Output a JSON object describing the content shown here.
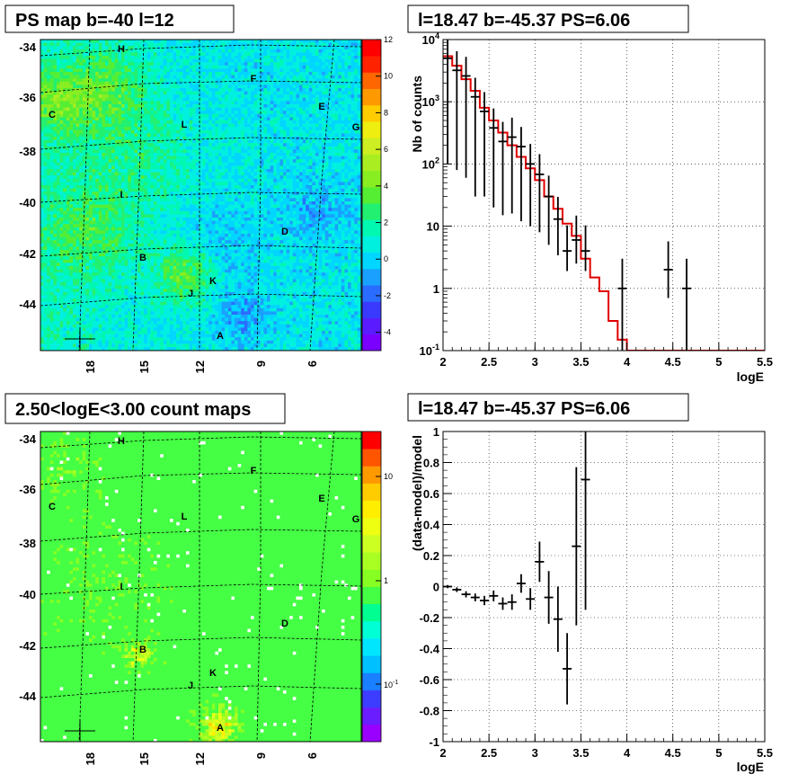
{
  "chart_data": [
    {
      "type": "heatmap",
      "title": "PS map b=-40 l=12",
      "xlabel": "",
      "ylabel": "",
      "x_ticks": [
        "18",
        "15",
        "12",
        "9",
        "6"
      ],
      "y_ticks": [
        "-34",
        "-36",
        "-38",
        "-40",
        "-42",
        "-44"
      ],
      "colorbar": {
        "scale": "linear",
        "range": [
          -5,
          12
        ],
        "tick_labels": [
          "12",
          "10",
          "8",
          "6",
          "4",
          "2",
          "0",
          "-2",
          "-4"
        ],
        "tick_values": [
          12,
          10,
          8,
          6,
          4,
          2,
          0,
          -2,
          -4
        ]
      },
      "sources": [
        {
          "name": "H"
        },
        {
          "name": "F"
        },
        {
          "name": "C"
        },
        {
          "name": "E"
        },
        {
          "name": "L"
        },
        {
          "name": "G"
        },
        {
          "name": "I"
        },
        {
          "name": "D"
        },
        {
          "name": "B"
        },
        {
          "name": "K"
        },
        {
          "name": "J"
        },
        {
          "name": "A"
        }
      ]
    },
    {
      "type": "line",
      "title": "l=18.47 b=-45.37 PS=6.06",
      "xlabel": "logE",
      "ylabel": "Nb of counts",
      "xlim": [
        2,
        5.5
      ],
      "ylim": [
        0.1,
        10000
      ],
      "yscale": "log",
      "grid": true,
      "x_ticks": [
        "2",
        "2.5",
        "3",
        "3.5",
        "4",
        "4.5",
        "5",
        "5.5"
      ],
      "y_ticks": [
        "10^-1",
        "1",
        "10",
        "10^2",
        "10^3",
        "10^4"
      ],
      "data": {
        "x": [
          2.05,
          2.15,
          2.25,
          2.35,
          2.45,
          2.55,
          2.65,
          2.75,
          2.85,
          2.95,
          3.05,
          3.15,
          3.25,
          3.35,
          3.45,
          3.55,
          3.95,
          4.45,
          4.65
        ],
        "y": [
          5000,
          3200,
          2600,
          1200,
          700,
          380,
          230,
          270,
          190,
          100,
          68,
          30,
          13,
          4,
          6,
          4,
          1,
          2,
          1
        ],
        "yerr_low": [
          4900,
          3120,
          2540,
          1170,
          670,
          360,
          215,
          254,
          178,
          90,
          60,
          25,
          9.6,
          2.1,
          3.5,
          2.1,
          0.9,
          1.3,
          0.9
        ],
        "yerr_high": [
          5100,
          3280,
          2660,
          1230,
          730,
          400,
          245,
          286,
          204,
          110,
          76,
          35,
          16.6,
          6.3,
          8.8,
          6.3,
          2,
          3.7,
          2
        ]
      },
      "model": {
        "color": "#e00000",
        "edges": [
          2.0,
          2.1,
          2.2,
          2.3,
          2.4,
          2.5,
          2.6,
          2.7,
          2.8,
          2.9,
          3.0,
          3.1,
          3.2,
          3.3,
          3.4,
          3.5,
          3.6,
          3.7,
          3.8,
          3.9,
          4.0,
          5.5
        ],
        "values": [
          5400,
          3800,
          2300,
          1500,
          800,
          500,
          320,
          200,
          130,
          85,
          55,
          30,
          19,
          11,
          7,
          3,
          1.5,
          0.9,
          0.3,
          0.15,
          0.1
        ]
      }
    },
    {
      "type": "heatmap",
      "title": "2.50<logE<3.00 count maps",
      "xlabel": "",
      "ylabel": "",
      "x_ticks": [
        "18",
        "15",
        "12",
        "9",
        "6"
      ],
      "y_ticks": [
        "-34",
        "-36",
        "-38",
        "-40",
        "-42",
        "-44"
      ],
      "colorbar": {
        "scale": "log",
        "tick_labels": [
          "10",
          "1",
          "10^-1"
        ],
        "tick_values": [
          10,
          1,
          0.1
        ]
      }
    },
    {
      "type": "scatter",
      "title": "l=18.47 b=-45.37 PS=6.06",
      "xlabel": "logE",
      "ylabel": "(data-model)/model",
      "xlim": [
        2,
        5.5
      ],
      "ylim": [
        -1,
        1
      ],
      "grid": true,
      "x_ticks": [
        "2",
        "2.5",
        "3",
        "3.5",
        "4",
        "4.5",
        "5",
        "5.5"
      ],
      "y_ticks": [
        "-1",
        "-0.8",
        "-0.6",
        "-0.4",
        "-0.2",
        "0",
        "0.2",
        "0.4",
        "0.6",
        "0.8",
        "1"
      ],
      "data": {
        "x": [
          2.05,
          2.15,
          2.25,
          2.35,
          2.45,
          2.55,
          2.65,
          2.75,
          2.85,
          2.95,
          3.05,
          3.15,
          3.25,
          3.35,
          3.45,
          3.55
        ],
        "y": [
          0.0,
          -0.02,
          -0.05,
          -0.07,
          -0.09,
          -0.06,
          -0.11,
          -0.1,
          0.02,
          -0.08,
          0.16,
          -0.07,
          -0.21,
          -0.53,
          0.26,
          0.69
        ],
        "yerr_low": [
          0.01,
          0.015,
          0.02,
          0.025,
          0.03,
          0.035,
          0.04,
          0.05,
          0.06,
          0.07,
          0.13,
          0.17,
          0.21,
          0.23,
          0.51,
          0.84
        ],
        "yerr_high": [
          0.01,
          0.015,
          0.02,
          0.025,
          0.03,
          0.035,
          0.04,
          0.05,
          0.06,
          0.07,
          0.13,
          0.17,
          0.21,
          0.23,
          0.51,
          0.84
        ]
      }
    }
  ]
}
